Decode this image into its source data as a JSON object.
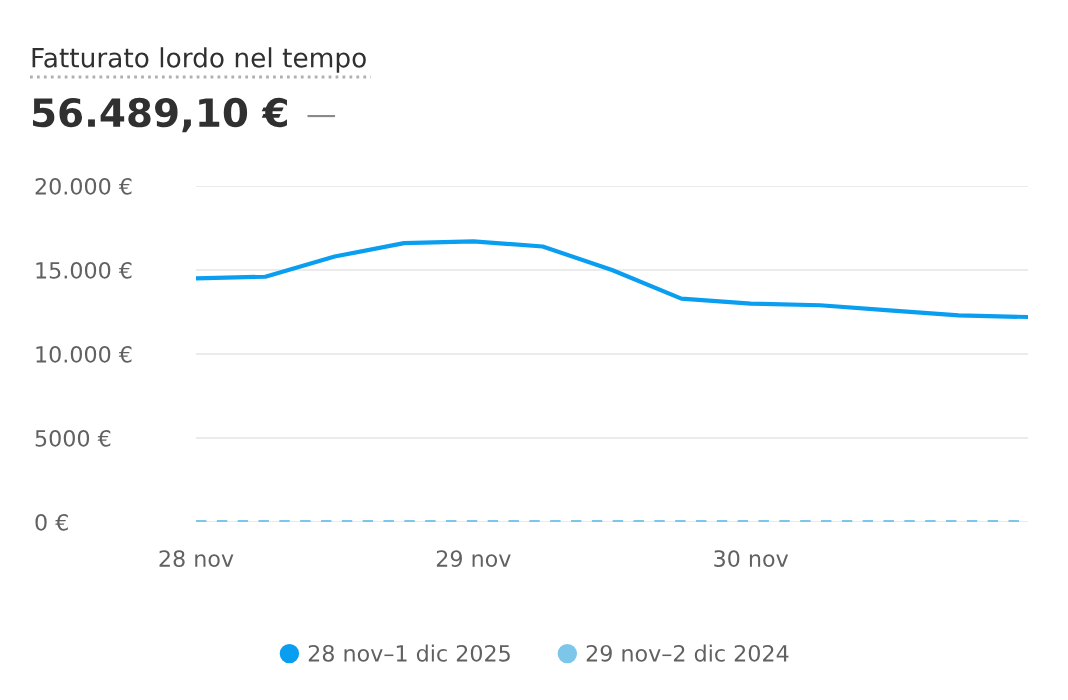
{
  "chart_data": {
    "type": "line",
    "title": "Fatturato lordo nel tempo",
    "subtitle": "56.489,10 €",
    "annotations": [
      "—"
    ],
    "categories": [
      "28 nov",
      null,
      null,
      null,
      "29 nov",
      null,
      null,
      null,
      "30 nov",
      null,
      null,
      null,
      null
    ],
    "series": [
      {
        "name": "28 nov–1 dic 2025",
        "color": "#0a9ef0",
        "values": [
          14500,
          14600,
          15800,
          16600,
          16700,
          16400,
          15000,
          13300,
          13000,
          12900,
          12600,
          12300,
          12200
        ],
        "line_style": "solid"
      },
      {
        "name": "29 nov–2 dic 2024",
        "color": "#7cc6ea",
        "values": [
          0,
          0,
          0,
          0,
          0,
          0,
          0,
          0,
          0,
          0,
          0,
          0,
          0
        ],
        "line_style": "dashed"
      }
    ],
    "ylim": [
      0,
      20000
    ],
    "yticks": [
      {
        "value": 0,
        "label": "0 €"
      },
      {
        "value": 5000,
        "label": "5000 €"
      },
      {
        "value": 10000,
        "label": "10.000 €"
      },
      {
        "value": 15000,
        "label": "15.000 €"
      },
      {
        "value": 20000,
        "label": "20.000 €"
      }
    ],
    "grid": "y",
    "legend": "bottom",
    "marker": "none"
  }
}
